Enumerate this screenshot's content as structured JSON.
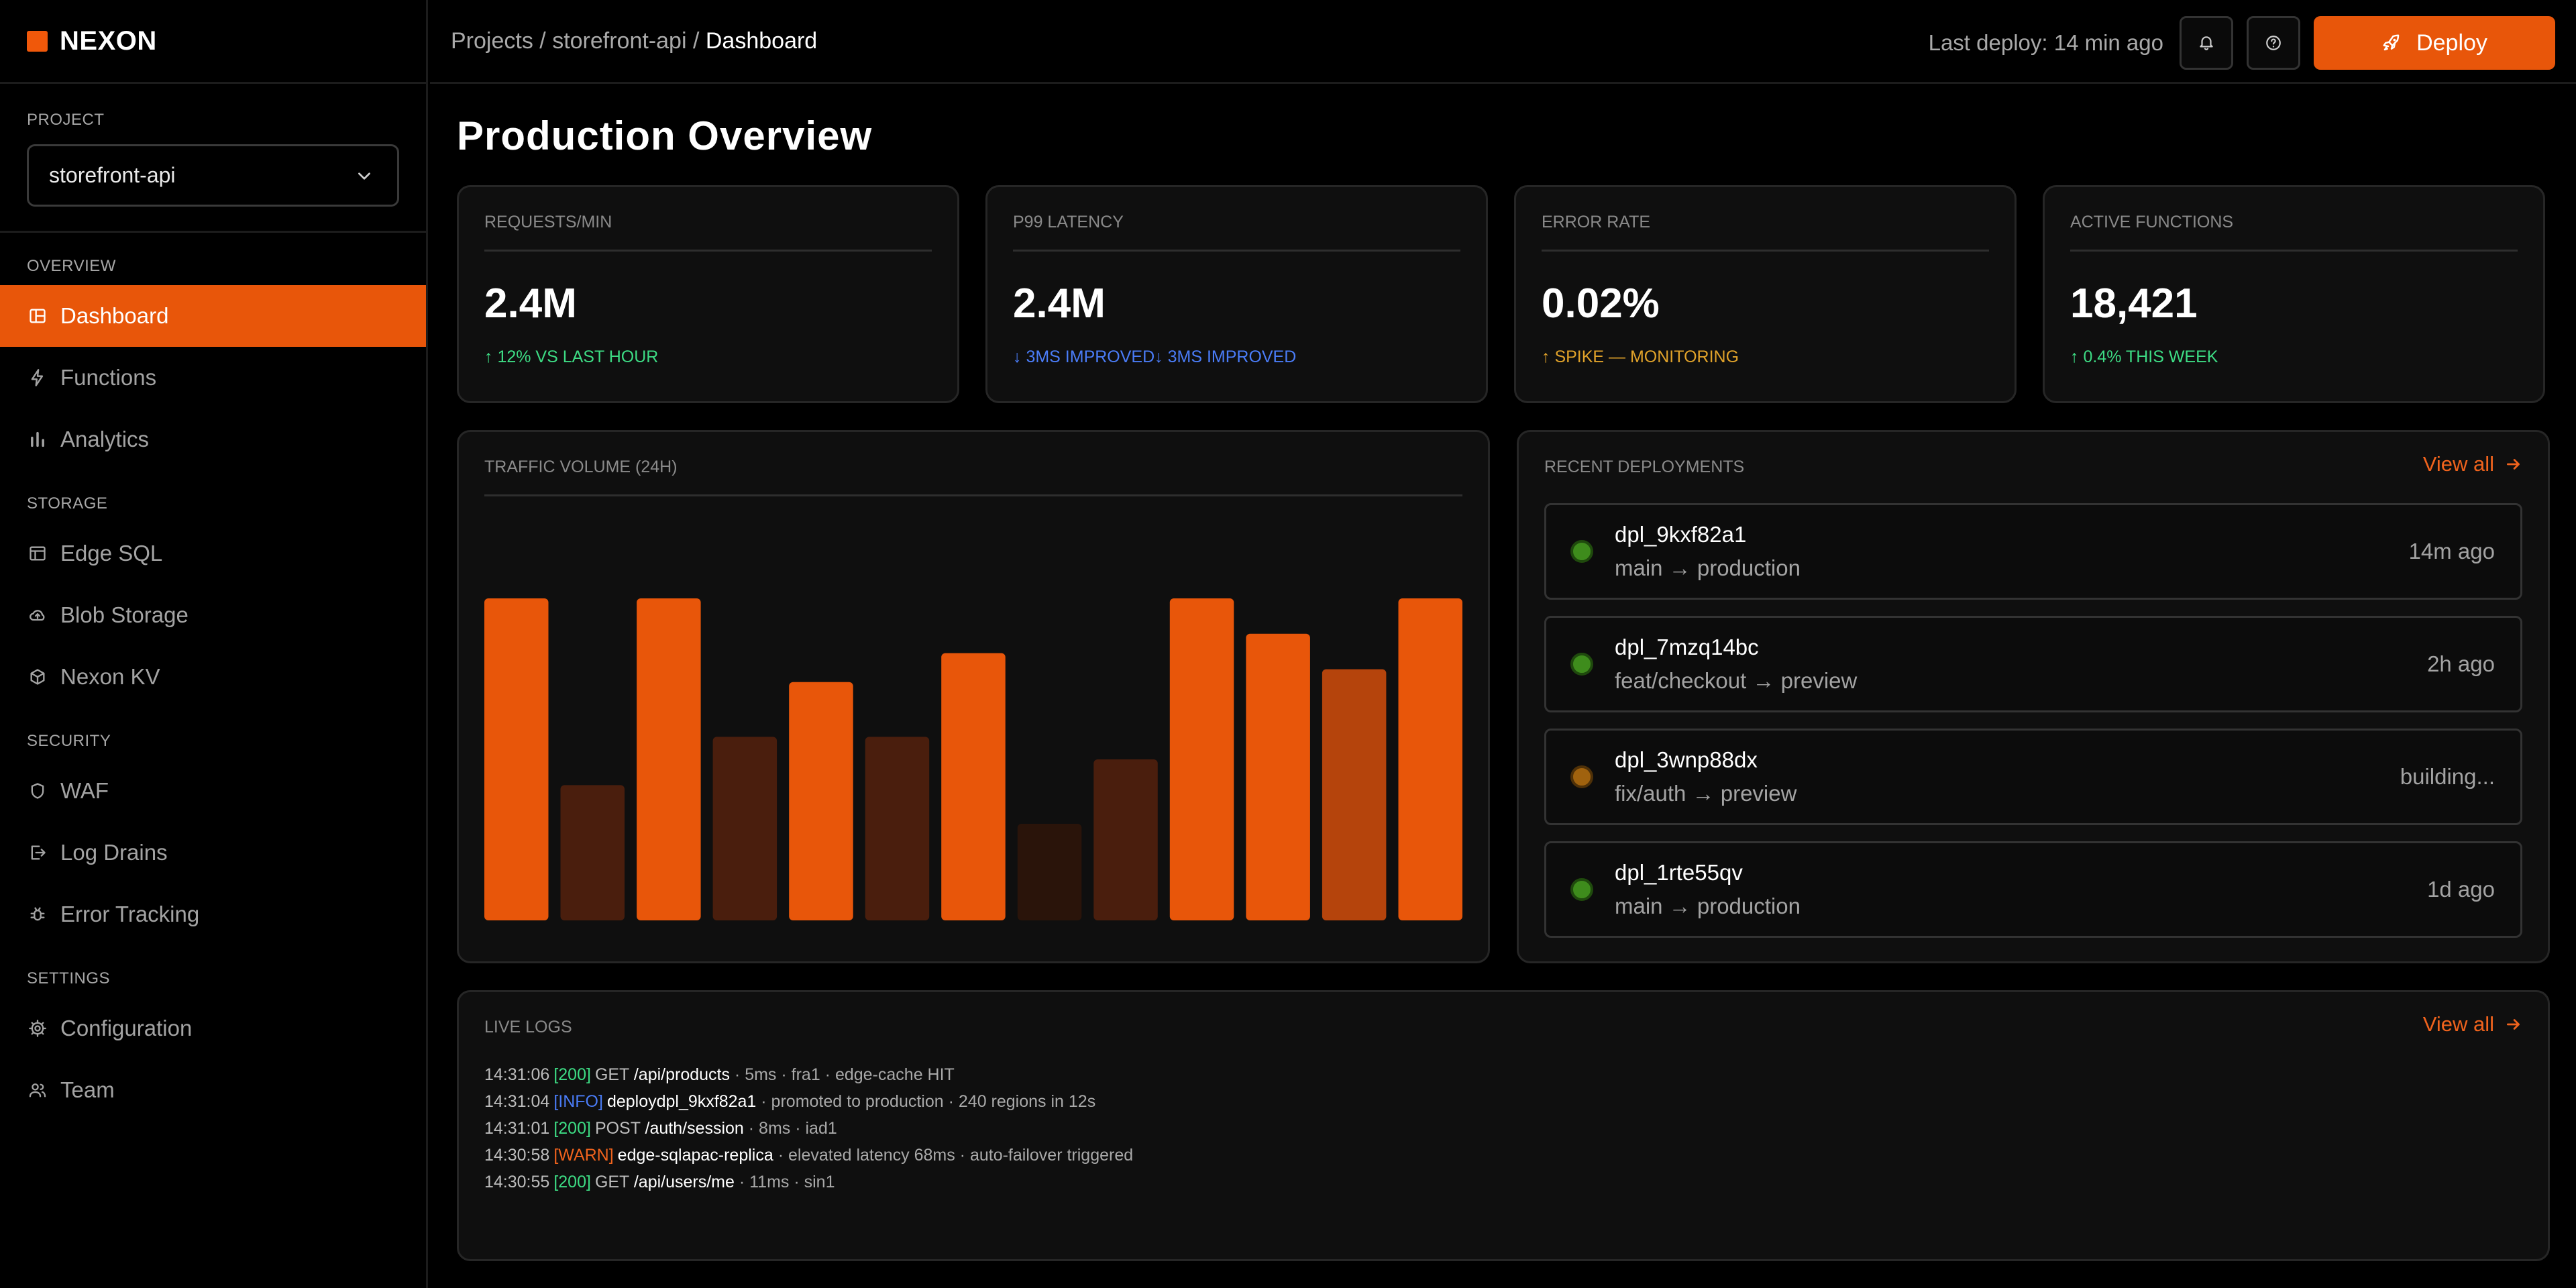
{
  "brand": {
    "name": "NEXON",
    "accent": "#E8560A"
  },
  "project": {
    "label": "PROJECT",
    "value": "storefront-api"
  },
  "nav": {
    "sections": [
      {
        "label": "OVERVIEW",
        "items": [
          {
            "label": "Dashboard",
            "icon": "layout-icon",
            "active": true
          },
          {
            "label": "Functions",
            "icon": "bolt-icon"
          },
          {
            "label": "Analytics",
            "icon": "bar-chart-icon"
          }
        ]
      },
      {
        "label": "STORAGE",
        "items": [
          {
            "label": "Edge SQL",
            "icon": "table-icon"
          },
          {
            "label": "Blob Storage",
            "icon": "cloud-upload-icon"
          },
          {
            "label": "Nexon KV",
            "icon": "cube-icon"
          }
        ]
      },
      {
        "label": "SECURITY",
        "items": [
          {
            "label": "WAF",
            "icon": "shield-icon"
          },
          {
            "label": "Log Drains",
            "icon": "export-icon"
          },
          {
            "label": "Error Tracking",
            "icon": "bug-icon"
          }
        ]
      },
      {
        "label": "SETTINGS",
        "items": [
          {
            "label": "Configuration",
            "icon": "gear-icon"
          },
          {
            "label": "Team",
            "icon": "users-icon"
          }
        ]
      }
    ]
  },
  "header": {
    "crumb_root": "Projects",
    "crumb_sep": "/",
    "crumb_project": "storefront-api",
    "crumb_current": "Dashboard",
    "last_deploy": "Last deploy: 14 min ago",
    "deploy_label": "Deploy",
    "icons": [
      "bell-icon",
      "help-icon",
      "rocket-icon"
    ]
  },
  "page_title": "Production Overview",
  "kpis": [
    {
      "label": "REQUESTS/MIN",
      "value": "2.4M",
      "delta": "↑ 12% VS LAST HOUR",
      "color": "#3DDC84"
    },
    {
      "label": "P99 LATENCY",
      "value": "2.4M",
      "delta": "↓ 3MS IMPROVED↓ 3MS IMPROVED",
      "color": "#4A7CF7"
    },
    {
      "label": "ERROR RATE",
      "value": "0.02%",
      "delta": "↑ SPIKE — MONITORING",
      "color": "#E0A22A"
    },
    {
      "label": "ACTIVE FUNCTIONS",
      "value": "18,421",
      "delta": "↑ 0.4% THIS WEEK",
      "color": "#3DDC84"
    }
  ],
  "traffic": {
    "title": "TRAFFIC VOLUME (24H)",
    "chart_data": {
      "type": "bar",
      "values": [
        100,
        42,
        100,
        57,
        74,
        57,
        83,
        30,
        50,
        100,
        89,
        78,
        100
      ],
      "ylim": [
        0,
        100
      ],
      "grid": false,
      "colors": [
        "#E8560A",
        "#4A1E0D",
        "#E8560A",
        "#4A1E0D",
        "#E8560A",
        "#4A1E0D",
        "#E8560A",
        "#2A140A",
        "#4A1E0D",
        "#E8560A",
        "#E8560A",
        "#B5440C",
        "#E8560A"
      ]
    }
  },
  "deployments": {
    "title": "RECENT DEPLOYMENTS",
    "view_all": "View all",
    "items": [
      {
        "id": "dpl_9kxf82a1",
        "branch": "main → production",
        "time": "14m ago",
        "status": "ready",
        "dot": "#3E8C1C",
        "ring": "#1F4A0D"
      },
      {
        "id": "dpl_7mzq14bc",
        "branch": "feat/checkout → preview",
        "time": "2h ago",
        "status": "ready",
        "dot": "#3E8C1C",
        "ring": "#1F4A0D"
      },
      {
        "id": "dpl_3wnp88dx",
        "branch": "fix/auth → preview",
        "time": "building...",
        "status": "building",
        "dot": "#A0620E",
        "ring": "#4F3108"
      },
      {
        "id": "dpl_1rte55qv",
        "branch": "main → production",
        "time": "1d ago",
        "status": "ready",
        "dot": "#3E8C1C",
        "ring": "#1F4A0D"
      }
    ]
  },
  "logs": {
    "title": "LIVE LOGS",
    "view_all": "View all",
    "lines": [
      {
        "time": "14:31:06",
        "tag": "[200]",
        "tag_color": "#3DDC84",
        "method": "GET",
        "path": "/api/products",
        "rest": " · 5ms · fra1 · edge-cache HIT"
      },
      {
        "time": "14:31:04",
        "tag": "[INFO]",
        "tag_color": "#4A7CF7",
        "method": "",
        "path": "deploydpl_9kxf82a1",
        "rest": " · promoted to production · 240 regions in 12s"
      },
      {
        "time": "14:31:01",
        "tag": "[200]",
        "tag_color": "#3DDC84",
        "method": "POST",
        "path": "/auth/session",
        "rest": " · 8ms · iad1"
      },
      {
        "time": "14:30:58",
        "tag": "[WARN]",
        "tag_color": "#F0631D",
        "method": "",
        "path": "edge-sqlapac-replica",
        "rest": " · elevated latency 68ms · auto-failover triggered"
      },
      {
        "time": "14:30:55",
        "tag": "[200]",
        "tag_color": "#3DDC84",
        "method": "GET",
        "path": "/api/users/me",
        "rest": " · 11ms · sin1"
      }
    ]
  }
}
